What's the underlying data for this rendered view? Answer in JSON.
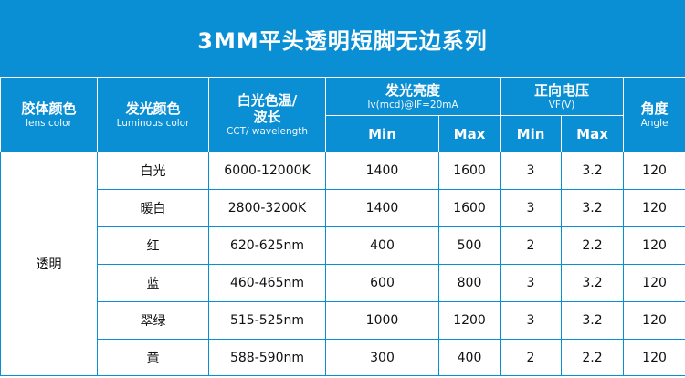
{
  "title": "3MM平头透明短脚无边系列",
  "headers": {
    "lens": {
      "cn": "胶体颜色",
      "en": "lens color"
    },
    "luminous": {
      "cn": "发光颜色",
      "en": "Luminous color"
    },
    "cct": {
      "cn": "白光色温/",
      "cn2": "波长",
      "en": "CCT/ wavelength"
    },
    "brightness": {
      "cn": "发光亮度",
      "en": "Iv(mcd)@IF=20mA"
    },
    "voltage": {
      "cn": "正向电压",
      "en": "VF(V)"
    },
    "angle": {
      "cn": "角度",
      "en": "Angle"
    },
    "min": "Min",
    "max": "Max"
  },
  "lens_value": "透明",
  "rows": [
    {
      "color": "白光",
      "cct": "6000-12000K",
      "iv_min": "1400",
      "iv_max": "1600",
      "vf_min": "3",
      "vf_max": "3.2",
      "angle": "120"
    },
    {
      "color": "暖白",
      "cct": "2800-3200K",
      "iv_min": "1400",
      "iv_max": "1600",
      "vf_min": "3",
      "vf_max": "3.2",
      "angle": "120"
    },
    {
      "color": "红",
      "cct": "620-625nm",
      "iv_min": "400",
      "iv_max": "500",
      "vf_min": "2",
      "vf_max": "2.2",
      "angle": "120"
    },
    {
      "color": "蓝",
      "cct": "460-465nm",
      "iv_min": "600",
      "iv_max": "800",
      "vf_min": "3",
      "vf_max": "3.2",
      "angle": "120"
    },
    {
      "color": "翠绿",
      "cct": "515-525nm",
      "iv_min": "1000",
      "iv_max": "1200",
      "vf_min": "3",
      "vf_max": "3.2",
      "angle": "120"
    },
    {
      "color": "黄",
      "cct": "588-590nm",
      "iv_min": "300",
      "iv_max": "400",
      "vf_min": "2",
      "vf_max": "2.2",
      "angle": "120"
    }
  ],
  "colors": {
    "header_bg": "#0a8ed4",
    "border": "#0a8ed4",
    "text": "#111111"
  }
}
